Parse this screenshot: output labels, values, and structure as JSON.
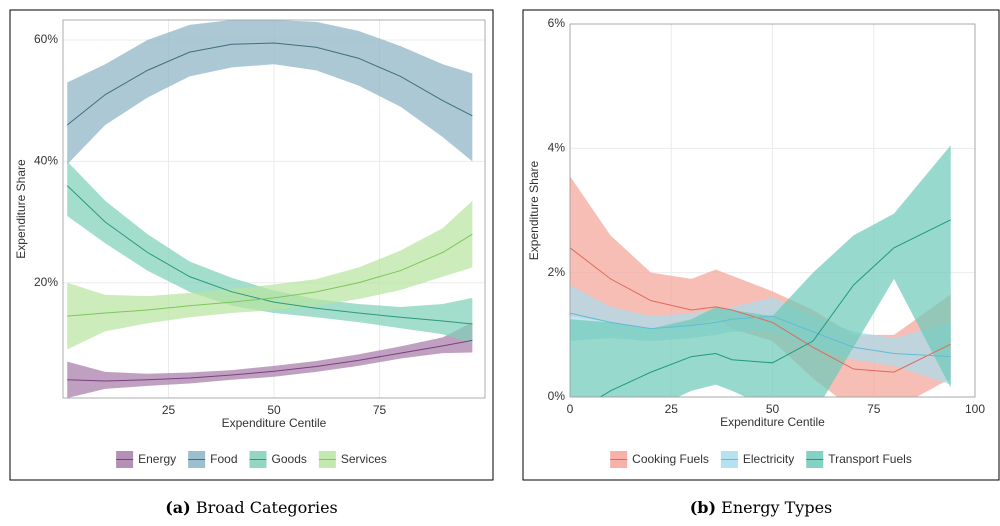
{
  "chart_data": [
    {
      "type": "line-band",
      "caption_label": "(a)",
      "caption": "Broad Categories",
      "x_label": "Expenditure Centile",
      "y_label": "Expenditure Share",
      "x": [
        1,
        10,
        20,
        30,
        40,
        50,
        60,
        70,
        80,
        90,
        97
      ],
      "xlim": [
        0,
        100
      ],
      "xticks": [
        25,
        50,
        75
      ],
      "ylim": [
        1,
        63.3
      ],
      "yticks": [
        {
          "value": 20,
          "label": "20%"
        },
        {
          "value": 40,
          "label": "40%"
        },
        {
          "value": 60,
          "label": "60%"
        }
      ],
      "grid": true,
      "legend": "bottom",
      "series": [
        {
          "name": "Energy",
          "color": "#7b3f7e",
          "fill": "#a77ba9",
          "values": [
            4,
            3.8,
            4,
            4.3,
            4.8,
            5.4,
            6.2,
            7.2,
            8.4,
            9.6,
            10.5
          ],
          "lower": [
            1,
            2.5,
            3.0,
            3.4,
            4.0,
            4.5,
            5.3,
            6.3,
            7.5,
            8.4,
            8.5
          ],
          "upper": [
            7,
            5.3,
            5.0,
            5.2,
            5.6,
            6.3,
            7.1,
            8.2,
            9.5,
            11,
            13.5
          ]
        },
        {
          "name": "Food",
          "color": "#3f6f80",
          "fill": "#8cb3c3",
          "values": [
            46,
            51,
            55,
            58,
            59.3,
            59.5,
            58.8,
            57,
            54,
            50,
            47.5
          ],
          "lower": [
            39.5,
            46,
            50.5,
            54,
            55.5,
            56,
            55,
            52.5,
            49,
            44,
            40
          ],
          "upper": [
            53,
            56,
            60,
            62.5,
            63.3,
            63.3,
            63,
            61.5,
            59,
            56,
            54.5
          ]
        },
        {
          "name": "Goods",
          "color": "#2a9a7e",
          "fill": "#80d0b9",
          "values": [
            36,
            30,
            25,
            21,
            18.5,
            16.8,
            15.8,
            15,
            14.3,
            13.7,
            13.2
          ],
          "lower": [
            31,
            26.5,
            22,
            18.5,
            16.2,
            15,
            14.3,
            13.5,
            12.5,
            11.5,
            10
          ],
          "upper": [
            40,
            33.5,
            28,
            23.5,
            20.8,
            18.7,
            17.3,
            16.5,
            16,
            16.5,
            17.5
          ]
        },
        {
          "name": "Services",
          "color": "#7cc75c",
          "fill": "#b9e5a2",
          "values": [
            14.5,
            15,
            15.5,
            16.2,
            16.8,
            17.5,
            18.5,
            20,
            22,
            25,
            28
          ],
          "lower": [
            9,
            12,
            13.3,
            14.3,
            15,
            15.5,
            16.2,
            17.3,
            18.8,
            21,
            22.5
          ],
          "upper": [
            20,
            18,
            17.8,
            18.3,
            19,
            19.7,
            20.6,
            22.5,
            25.3,
            29,
            33.5
          ]
        }
      ]
    },
    {
      "type": "line-band",
      "caption_label": "(b)",
      "caption": "Energy Types",
      "x_label": "Expenditure Centile",
      "y_label": "Expenditure Share",
      "x": [
        0,
        10,
        20,
        30,
        36,
        40,
        50,
        60,
        70,
        80,
        94
      ],
      "xlim": [
        0,
        100
      ],
      "xticks": [
        0,
        25,
        50,
        75,
        100
      ],
      "ylim": [
        0,
        6
      ],
      "yticks": [
        {
          "value": 0,
          "label": "0%"
        },
        {
          "value": 2,
          "label": "2%"
        },
        {
          "value": 4,
          "label": "4%"
        },
        {
          "value": 6,
          "label": "6%"
        }
      ],
      "grid": true,
      "legend": "bottom",
      "series": [
        {
          "name": "Cooking Fuels",
          "color": "#e0695b",
          "fill": "#f4a59a",
          "values": [
            2.4,
            1.9,
            1.55,
            1.4,
            1.45,
            1.4,
            1.2,
            0.8,
            0.45,
            0.4,
            0.85
          ],
          "lower": [
            1.3,
            1.2,
            1.1,
            1.15,
            1.25,
            1.1,
            0.9,
            0.3,
            -0.2,
            -0.2,
            0.3
          ],
          "upper": [
            3.55,
            2.6,
            2.0,
            1.9,
            2.05,
            1.95,
            1.7,
            1.4,
            1.0,
            1.0,
            1.65
          ]
        },
        {
          "name": "Electricity",
          "color": "#5fbdd4",
          "fill": "#a9dceb",
          "values": [
            1.35,
            1.2,
            1.1,
            1.15,
            1.2,
            1.25,
            1.3,
            1.05,
            0.8,
            0.7,
            0.65
          ],
          "lower": [
            0.9,
            0.95,
            0.9,
            0.95,
            1.0,
            1.05,
            1.05,
            0.8,
            0.6,
            0.5,
            0.2
          ],
          "upper": [
            1.8,
            1.45,
            1.3,
            1.35,
            1.4,
            1.45,
            1.6,
            1.3,
            1.05,
            0.95,
            1.2
          ]
        },
        {
          "name": "Transport Fuels",
          "color": "#1f9a80",
          "fill": "#6fcab9",
          "values": [
            -0.3,
            0.1,
            0.4,
            0.65,
            0.7,
            0.6,
            0.55,
            0.9,
            1.8,
            2.4,
            2.85
          ],
          "lower": [
            -1,
            -0.6,
            -0.2,
            0.1,
            0.2,
            0.1,
            -0.2,
            -0.3,
            0.8,
            1.9,
            0.15
          ],
          "upper": [
            1.25,
            1.2,
            1.1,
            1.25,
            1.45,
            1.4,
            1.3,
            2.0,
            2.6,
            2.95,
            4.05
          ]
        }
      ]
    }
  ]
}
